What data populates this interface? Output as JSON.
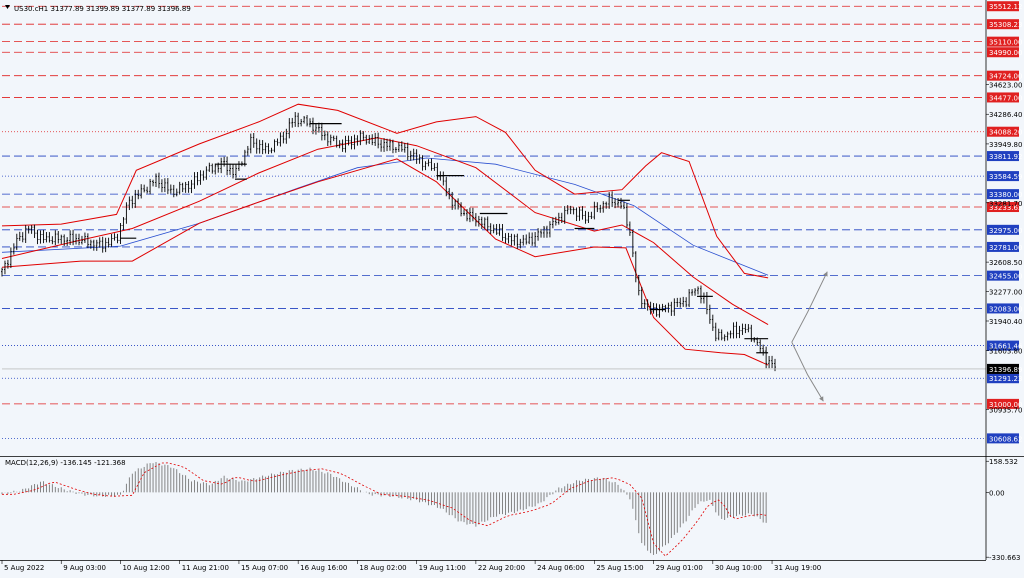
{
  "symbol_info": "US30.cH1  31377.89 31399.89 31377.89 31396.89",
  "macd_info": "MACD(12,26,9) -136.145 -121.368",
  "price_axis": {
    "ticks": [
      {
        "label": "34623.00",
        "v": 34623
      },
      {
        "label": "34286.40",
        "v": 34286.4
      },
      {
        "label": "33949.80",
        "v": 33949.8
      },
      {
        "label": "33281.70",
        "v": 33281.7
      },
      {
        "label": "32608.50",
        "v": 32608.5
      },
      {
        "label": "32277.00",
        "v": 32277
      },
      {
        "label": "31940.40",
        "v": 31940.4
      },
      {
        "label": "31603.80",
        "v": 31603.8
      },
      {
        "label": "30935.70",
        "v": 30935.7
      }
    ]
  },
  "levels": [
    {
      "label": "35512.12",
      "v": 35512.12,
      "color": "#e02020",
      "style": "dash"
    },
    {
      "label": "35308.23",
      "v": 35308.23,
      "color": "#e02020",
      "style": "dash"
    },
    {
      "label": "35110.00",
      "v": 35110.0,
      "color": "#e02020",
      "style": "dash"
    },
    {
      "label": "34990.00",
      "v": 34990.0,
      "color": "#e02020",
      "style": "dash"
    },
    {
      "label": "34724.00",
      "v": 34724.0,
      "color": "#e02020",
      "style": "dash"
    },
    {
      "label": "34477.00",
      "v": 34477.0,
      "color": "#e02020",
      "style": "dash"
    },
    {
      "label": "34088.20",
      "v": 34088.2,
      "color": "#e02020",
      "style": "dot"
    },
    {
      "label": "33811.92",
      "v": 33811.92,
      "color": "#2040c0",
      "style": "dash"
    },
    {
      "label": "33584.59",
      "v": 33584.59,
      "color": "#2040c0",
      "style": "dot"
    },
    {
      "label": "33380.00",
      "v": 33380.0,
      "color": "#2040c0",
      "style": "dash"
    },
    {
      "label": "33233.63",
      "v": 33233.63,
      "color": "#e02020",
      "style": "dash"
    },
    {
      "label": "32975.00",
      "v": 32975.0,
      "color": "#2040c0",
      "style": "dash"
    },
    {
      "label": "32781.00",
      "v": 32781.0,
      "color": "#2040c0",
      "style": "dash"
    },
    {
      "label": "32455.00",
      "v": 32455.0,
      "color": "#2040c0",
      "style": "dash"
    },
    {
      "label": "32083.00",
      "v": 32083.0,
      "color": "#2040c0",
      "style": "dash"
    },
    {
      "label": "31661.46",
      "v": 31661.46,
      "color": "#2040c0",
      "style": "dot"
    },
    {
      "label": "31291.23",
      "v": 31291.23,
      "color": "#2040c0",
      "style": "dot"
    },
    {
      "label": "31000.00",
      "v": 31000.0,
      "color": "#e02020",
      "style": "dash"
    },
    {
      "label": "30608.62",
      "v": 30608.62,
      "color": "#2040c0",
      "style": "dot"
    }
  ],
  "current_price": {
    "label": "31396.89",
    "v": 31396.89
  },
  "macd_axis": {
    "ticks": [
      {
        "label": "158.532",
        "v": 158.532
      },
      {
        "label": "0.00",
        "v": 0
      },
      {
        "label": "-330.663",
        "v": -330.663
      }
    ]
  },
  "time_axis": [
    "5 Aug 2022",
    "9 Aug 03:00",
    "10 Aug 12:00",
    "11 Aug 21:00",
    "15 Aug 07:00",
    "16 Aug 16:00",
    "18 Aug 02:00",
    "19 Aug 11:00",
    "22 Aug 20:00",
    "24 Aug 06:00",
    "25 Aug 15:00",
    "29 Aug 01:00",
    "30 Aug 10:00",
    "31 Aug 19:00"
  ],
  "colors": {
    "background": "#f2f6fb",
    "candles": "#000000",
    "bands": "#e00000",
    "ma": "#2a4fd0",
    "level_box_red": "#e00000",
    "level_box_blue": "#2a4fd0",
    "forecast": "#888888"
  },
  "chart_data": {
    "type": "candlestick",
    "price_range": [
      30420,
      35560
    ],
    "macd_range": [
      -345,
      175
    ],
    "close_path": [
      {
        "t": 0,
        "p": 32500
      },
      {
        "t": 8,
        "p": 32870
      },
      {
        "t": 14,
        "p": 33000
      },
      {
        "t": 20,
        "p": 32870
      },
      {
        "t": 30,
        "p": 32880
      },
      {
        "t": 40,
        "p": 32860
      },
      {
        "t": 50,
        "p": 32800
      },
      {
        "t": 58,
        "p": 32870
      },
      {
        "t": 64,
        "p": 33290
      },
      {
        "t": 72,
        "p": 33430
      },
      {
        "t": 78,
        "p": 33550
      },
      {
        "t": 86,
        "p": 33400
      },
      {
        "t": 96,
        "p": 33500
      },
      {
        "t": 104,
        "p": 33650
      },
      {
        "t": 112,
        "p": 33730
      },
      {
        "t": 118,
        "p": 33610
      },
      {
        "t": 126,
        "p": 33980
      },
      {
        "t": 134,
        "p": 33870
      },
      {
        "t": 142,
        "p": 34020
      },
      {
        "t": 148,
        "p": 34240
      },
      {
        "t": 156,
        "p": 34180
      },
      {
        "t": 164,
        "p": 34030
      },
      {
        "t": 172,
        "p": 33930
      },
      {
        "t": 182,
        "p": 34030
      },
      {
        "t": 192,
        "p": 33950
      },
      {
        "t": 202,
        "p": 33900
      },
      {
        "t": 212,
        "p": 33760
      },
      {
        "t": 220,
        "p": 33650
      },
      {
        "t": 228,
        "p": 33300
      },
      {
        "t": 234,
        "p": 33150
      },
      {
        "t": 242,
        "p": 33080
      },
      {
        "t": 250,
        "p": 32960
      },
      {
        "t": 258,
        "p": 32860
      },
      {
        "t": 266,
        "p": 32840
      },
      {
        "t": 272,
        "p": 32930
      },
      {
        "t": 280,
        "p": 33060
      },
      {
        "t": 288,
        "p": 33220
      },
      {
        "t": 296,
        "p": 33100
      },
      {
        "t": 302,
        "p": 33230
      },
      {
        "t": 308,
        "p": 33320
      },
      {
        "t": 314,
        "p": 33250
      },
      {
        "t": 318,
        "p": 32960
      },
      {
        "t": 322,
        "p": 32260
      },
      {
        "t": 328,
        "p": 32050
      },
      {
        "t": 336,
        "p": 32090
      },
      {
        "t": 346,
        "p": 32160
      },
      {
        "t": 352,
        "p": 32330
      },
      {
        "t": 356,
        "p": 32140
      },
      {
        "t": 362,
        "p": 31740
      },
      {
        "t": 370,
        "p": 31820
      },
      {
        "t": 376,
        "p": 31860
      },
      {
        "t": 382,
        "p": 31710
      },
      {
        "t": 386,
        "p": 31540
      },
      {
        "t": 392,
        "p": 31400
      }
    ],
    "bollinger_upper": [
      {
        "t": 0,
        "p": 33020
      },
      {
        "t": 30,
        "p": 33040
      },
      {
        "t": 58,
        "p": 33150
      },
      {
        "t": 68,
        "p": 33650
      },
      {
        "t": 100,
        "p": 33950
      },
      {
        "t": 130,
        "p": 34200
      },
      {
        "t": 150,
        "p": 34400
      },
      {
        "t": 170,
        "p": 34330
      },
      {
        "t": 200,
        "p": 34070
      },
      {
        "t": 220,
        "p": 34200
      },
      {
        "t": 240,
        "p": 34260
      },
      {
        "t": 255,
        "p": 34080
      },
      {
        "t": 270,
        "p": 33650
      },
      {
        "t": 290,
        "p": 33380
      },
      {
        "t": 314,
        "p": 33430
      },
      {
        "t": 326,
        "p": 33700
      },
      {
        "t": 334,
        "p": 33850
      },
      {
        "t": 348,
        "p": 33750
      },
      {
        "t": 362,
        "p": 32900
      },
      {
        "t": 376,
        "p": 32480
      },
      {
        "t": 388,
        "p": 32430
      }
    ],
    "bollinger_mid": [
      {
        "t": 0,
        "p": 32650
      },
      {
        "t": 40,
        "p": 32860
      },
      {
        "t": 66,
        "p": 32990
      },
      {
        "t": 100,
        "p": 33300
      },
      {
        "t": 130,
        "p": 33620
      },
      {
        "t": 160,
        "p": 33890
      },
      {
        "t": 190,
        "p": 34020
      },
      {
        "t": 210,
        "p": 33930
      },
      {
        "t": 240,
        "p": 33680
      },
      {
        "t": 270,
        "p": 33170
      },
      {
        "t": 300,
        "p": 32960
      },
      {
        "t": 314,
        "p": 33030
      },
      {
        "t": 330,
        "p": 32830
      },
      {
        "t": 350,
        "p": 32440
      },
      {
        "t": 370,
        "p": 32130
      },
      {
        "t": 388,
        "p": 31900
      }
    ],
    "bollinger_lower": [
      {
        "t": 0,
        "p": 32550
      },
      {
        "t": 40,
        "p": 32620
      },
      {
        "t": 66,
        "p": 32620
      },
      {
        "t": 100,
        "p": 33050
      },
      {
        "t": 130,
        "p": 33290
      },
      {
        "t": 160,
        "p": 33520
      },
      {
        "t": 200,
        "p": 33780
      },
      {
        "t": 220,
        "p": 33520
      },
      {
        "t": 250,
        "p": 32870
      },
      {
        "t": 270,
        "p": 32670
      },
      {
        "t": 300,
        "p": 32780
      },
      {
        "t": 316,
        "p": 32770
      },
      {
        "t": 330,
        "p": 31980
      },
      {
        "t": 346,
        "p": 31620
      },
      {
        "t": 364,
        "p": 31580
      },
      {
        "t": 376,
        "p": 31560
      },
      {
        "t": 388,
        "p": 31440
      }
    ],
    "moving_average": [
      {
        "t": 0,
        "p": 32720
      },
      {
        "t": 60,
        "p": 32790
      },
      {
        "t": 100,
        "p": 33050
      },
      {
        "t": 150,
        "p": 33450
      },
      {
        "t": 180,
        "p": 33680
      },
      {
        "t": 215,
        "p": 33790
      },
      {
        "t": 250,
        "p": 33720
      },
      {
        "t": 290,
        "p": 33490
      },
      {
        "t": 320,
        "p": 33250
      },
      {
        "t": 350,
        "p": 32800
      },
      {
        "t": 388,
        "p": 32460
      }
    ],
    "horizontal_segments": [
      {
        "t0": 60,
        "t1": 68,
        "p": 32880
      },
      {
        "t0": 108,
        "t1": 124,
        "p": 33720
      },
      {
        "t0": 118,
        "t1": 124,
        "p": 33550
      },
      {
        "t0": 156,
        "t1": 172,
        "p": 34180
      },
      {
        "t0": 220,
        "t1": 234,
        "p": 33590
      },
      {
        "t0": 242,
        "t1": 256,
        "p": 33160
      },
      {
        "t0": 290,
        "t1": 300,
        "p": 32990
      },
      {
        "t0": 312,
        "t1": 318,
        "p": 33310
      },
      {
        "t0": 328,
        "t1": 336,
        "p": 32070
      },
      {
        "t0": 352,
        "t1": 360,
        "p": 32220
      },
      {
        "t0": 376,
        "t1": 388,
        "p": 31740
      },
      {
        "t0": 382,
        "t1": 388,
        "p": 31580
      }
    ],
    "forecast": [
      [
        {
          "t": 400,
          "p": 31700
        },
        {
          "t": 408,
          "p": 32040
        },
        {
          "t": 418,
          "p": 32500
        }
      ],
      [
        {
          "t": 400,
          "p": 31700
        },
        {
          "t": 408,
          "p": 31330
        },
        {
          "t": 416,
          "p": 31030
        }
      ]
    ],
    "macd_hist": [
      {
        "t": 0,
        "v": -10
      },
      {
        "t": 10,
        "v": 10
      },
      {
        "t": 20,
        "v": 55
      },
      {
        "t": 30,
        "v": 20
      },
      {
        "t": 40,
        "v": -10
      },
      {
        "t": 50,
        "v": -20
      },
      {
        "t": 60,
        "v": -15
      },
      {
        "t": 66,
        "v": 100
      },
      {
        "t": 76,
        "v": 155
      },
      {
        "t": 86,
        "v": 130
      },
      {
        "t": 96,
        "v": 60
      },
      {
        "t": 106,
        "v": 40
      },
      {
        "t": 112,
        "v": 80
      },
      {
        "t": 122,
        "v": 55
      },
      {
        "t": 134,
        "v": 85
      },
      {
        "t": 146,
        "v": 110
      },
      {
        "t": 156,
        "v": 120
      },
      {
        "t": 166,
        "v": 95
      },
      {
        "t": 176,
        "v": 40
      },
      {
        "t": 186,
        "v": -10
      },
      {
        "t": 198,
        "v": -20
      },
      {
        "t": 210,
        "v": -40
      },
      {
        "t": 222,
        "v": -80
      },
      {
        "t": 232,
        "v": -150
      },
      {
        "t": 240,
        "v": -170
      },
      {
        "t": 250,
        "v": -120
      },
      {
        "t": 262,
        "v": -95
      },
      {
        "t": 272,
        "v": -60
      },
      {
        "t": 282,
        "v": 20
      },
      {
        "t": 292,
        "v": 60
      },
      {
        "t": 304,
        "v": 75
      },
      {
        "t": 312,
        "v": 40
      },
      {
        "t": 318,
        "v": -30
      },
      {
        "t": 324,
        "v": -260
      },
      {
        "t": 330,
        "v": -325
      },
      {
        "t": 338,
        "v": -250
      },
      {
        "t": 346,
        "v": -150
      },
      {
        "t": 352,
        "v": -60
      },
      {
        "t": 358,
        "v": -35
      },
      {
        "t": 364,
        "v": -140
      },
      {
        "t": 372,
        "v": -120
      },
      {
        "t": 380,
        "v": -110
      },
      {
        "t": 388,
        "v": -165
      }
    ],
    "time_ticks_t": [
      0,
      30,
      60,
      90,
      120,
      150,
      180,
      210,
      240,
      270,
      300,
      330,
      360,
      390
    ]
  }
}
